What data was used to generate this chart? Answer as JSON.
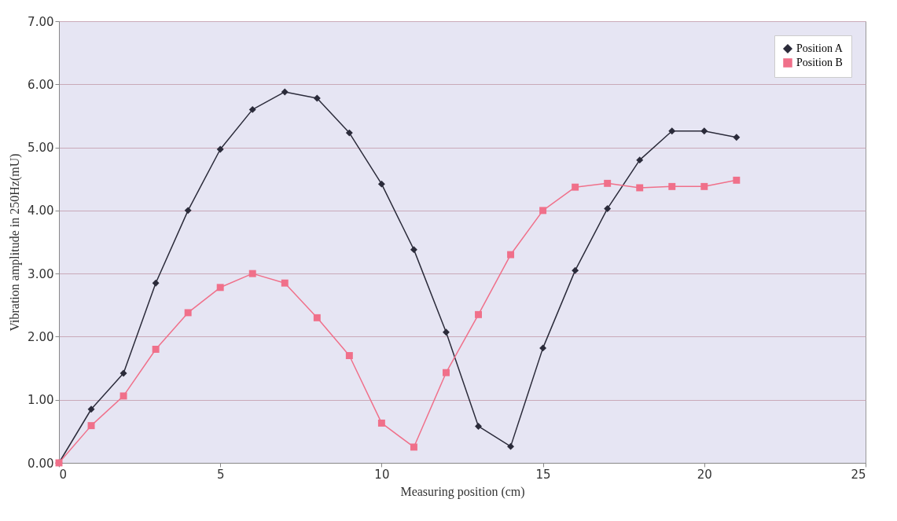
{
  "chart_data": {
    "type": "line",
    "xlabel": "Measuring position (cm)",
    "ylabel": "Vibration amplitude in 250Hz(mU)",
    "x": [
      0,
      1,
      2,
      3,
      4,
      5,
      6,
      7,
      8,
      9,
      10,
      11,
      12,
      13,
      14,
      15,
      16,
      17,
      18,
      19,
      20,
      21
    ],
    "series": [
      {
        "name": "Position A",
        "color": "#2b2b3a",
        "marker": "diamond",
        "values": [
          0,
          0.85,
          1.42,
          2.85,
          4.0,
          4.97,
          5.6,
          5.88,
          5.78,
          5.23,
          4.42,
          3.38,
          2.07,
          0.58,
          0.26,
          1.82,
          3.05,
          4.03,
          4.8,
          5.26,
          5.26,
          5.16
        ]
      },
      {
        "name": "Position B",
        "color": "#f0708a",
        "marker": "square",
        "values": [
          0,
          0.59,
          1.06,
          1.8,
          2.38,
          2.78,
          3.0,
          2.85,
          2.3,
          1.7,
          0.63,
          0.25,
          1.43,
          2.35,
          3.3,
          4.0,
          4.37,
          4.43,
          4.36,
          4.38,
          4.38,
          4.48
        ]
      }
    ],
    "xlim": [
      0,
      25
    ],
    "xticks": [
      0,
      5,
      10,
      15,
      20,
      25
    ],
    "ylim": [
      0,
      7
    ],
    "yticks": [
      {
        "value": 0,
        "label": "0.00"
      },
      {
        "value": 1,
        "label": "1.00"
      },
      {
        "value": 2,
        "label": "2.00"
      },
      {
        "value": 3,
        "label": "3.00"
      },
      {
        "value": 4,
        "label": "4.00"
      },
      {
        "value": 5,
        "label": "5.00"
      },
      {
        "value": 6,
        "label": "6.00"
      },
      {
        "value": 7,
        "label": "7.00"
      }
    ],
    "grid": "y",
    "legend": "top right",
    "line_style": "solid"
  }
}
